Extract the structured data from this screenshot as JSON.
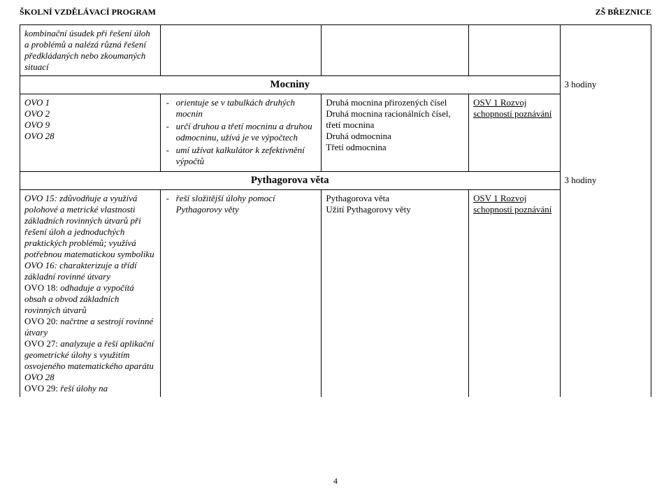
{
  "header": {
    "left": "ŠKOLNÍ VZDĚLÁVACÍ PROGRAM",
    "right": "ZŠ BŘEZNICE"
  },
  "row1": {
    "col1": "kombinační úsudek při řešení úloh a problémů a nalézá různá řešení předkládaných nebo zkoumaných situací"
  },
  "sec1": {
    "title": "Mocniny",
    "hours": "3 hodiny"
  },
  "row2": {
    "col1_l1": "OVO 1",
    "col1_l2": "OVO 2",
    "col1_l3": "OVO 9",
    "col1_l4": "OVO 28",
    "col2_li1": "orientuje se v tabulkách druhých mocnin",
    "col2_li2": "určí druhou a třetí mocninu a druhou odmocninu, užívá je ve výpočtech",
    "col2_li3": "umí užívat kalkulátor k zefektivnění výpočtů",
    "col3_l1": "Druhá mocnina přirozených čísel",
    "col3_l2": "Druhá mocnina racionálních čísel, třetí mocnina",
    "col3_l3": "Druhá odmocnina",
    "col3_l4": "Třetí odmocnina",
    "col4_u": "OSV 1   Rozvoj schopností poznávání"
  },
  "sec2": {
    "title": "Pythagorova věta",
    "hours": "3 hodiny"
  },
  "row3": {
    "col1_p1": "OVO 15: zdůvodňuje a využívá polohové a metrické vlastnosti základních rovinných útvarů při řešení úloh a jednoduchých praktických problémů; využívá potřebnou matematickou symboliku",
    "col1_p2": "OVO 16: charakterizuje a třídí základní rovinné útvary",
    "col1_p3a": "OVO 18:",
    "col1_p3b": " odhaduje a vypočítá obsah a obvod základních rovinných útvarů",
    "col1_p4a": "OVO 20:",
    "col1_p4b": " načrtne a sestrojí rovinné útvary",
    "col1_p5a": "OVO 27:",
    "col1_p5b": " analyzuje a řeší aplikační geometrické úlohy s využitím osvojeného matematického aparátu",
    "col1_p6": "OVO 28",
    "col1_p7a": "OVO 29:",
    "col1_p7b": " řeší úlohy na",
    "col2_li1": "řeší složitější úlohy pomocí Pythagorovy věty",
    "col3_l1": "Pythagorova věta",
    "col3_l2": "Užití Pythagorovy věty",
    "col4_u": "OSV 1   Rozvoj schopností poznávání"
  },
  "page_number": "4"
}
